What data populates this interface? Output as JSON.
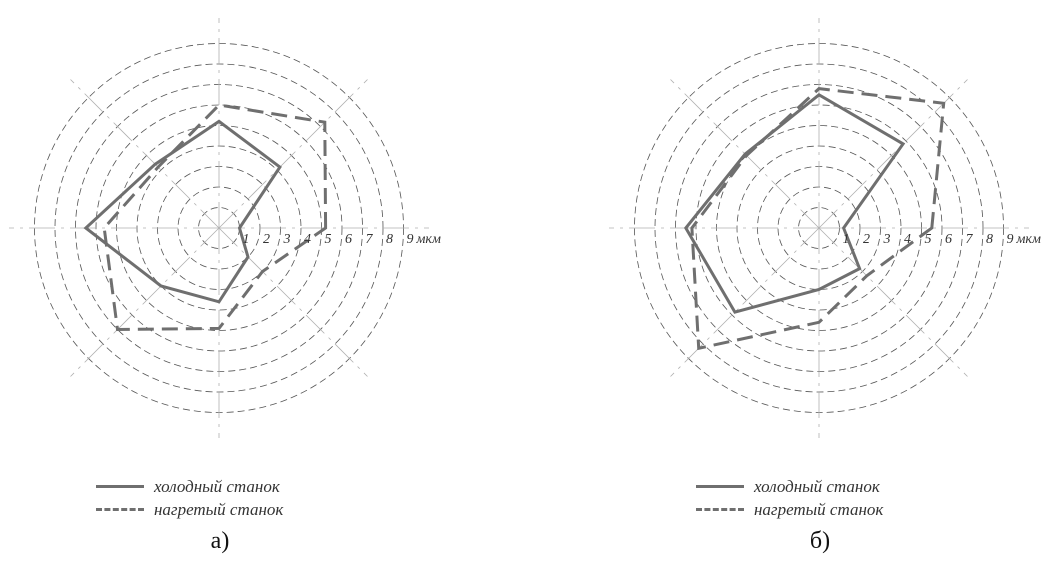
{
  "unit": "мкм",
  "legend": {
    "cold": "холодный станок",
    "heated": "нагретый станок"
  },
  "colors": {
    "line": "#6f6f6f",
    "grid": "#555555",
    "axis": "#b0b0b0"
  },
  "chart_data": [
    {
      "type": "radar",
      "caption": "а)",
      "rings": [
        1,
        2,
        3,
        4,
        5,
        6,
        7,
        8,
        9
      ],
      "ring_labels": [
        "1",
        "2",
        "3",
        "4",
        "5",
        "6",
        "7",
        "8",
        "9"
      ],
      "angles_deg": [
        0,
        45,
        90,
        135,
        180,
        225,
        270,
        315
      ],
      "grid": "dashed circles",
      "series": [
        {
          "name": "холодный станок",
          "style": "solid",
          "values": [
            1.0,
            4.2,
            5.2,
            4.4,
            6.5,
            4.0,
            3.6,
            2.0
          ]
        },
        {
          "name": "нагретый станок",
          "style": "dashed",
          "values": [
            5.2,
            7.3,
            6.0,
            4.2,
            5.6,
            7.0,
            4.9,
            3.0
          ]
        }
      ]
    },
    {
      "type": "radar",
      "caption": "б)",
      "rings": [
        1,
        2,
        3,
        4,
        5,
        6,
        7,
        8,
        9
      ],
      "ring_labels": [
        "1",
        "2",
        "3",
        "4",
        "5",
        "6",
        "7",
        "8",
        "9"
      ],
      "angles_deg": [
        0,
        45,
        90,
        135,
        180,
        225,
        270,
        315
      ],
      "grid": "dashed circles",
      "series": [
        {
          "name": "холодный станок",
          "style": "solid",
          "values": [
            1.2,
            5.8,
            6.5,
            5.1,
            6.5,
            5.8,
            3.0,
            2.8
          ]
        },
        {
          "name": "нагретый станок",
          "style": "dashed",
          "values": [
            5.5,
            8.6,
            6.8,
            5.0,
            6.2,
            8.3,
            4.6,
            3.3
          ]
        }
      ]
    }
  ]
}
